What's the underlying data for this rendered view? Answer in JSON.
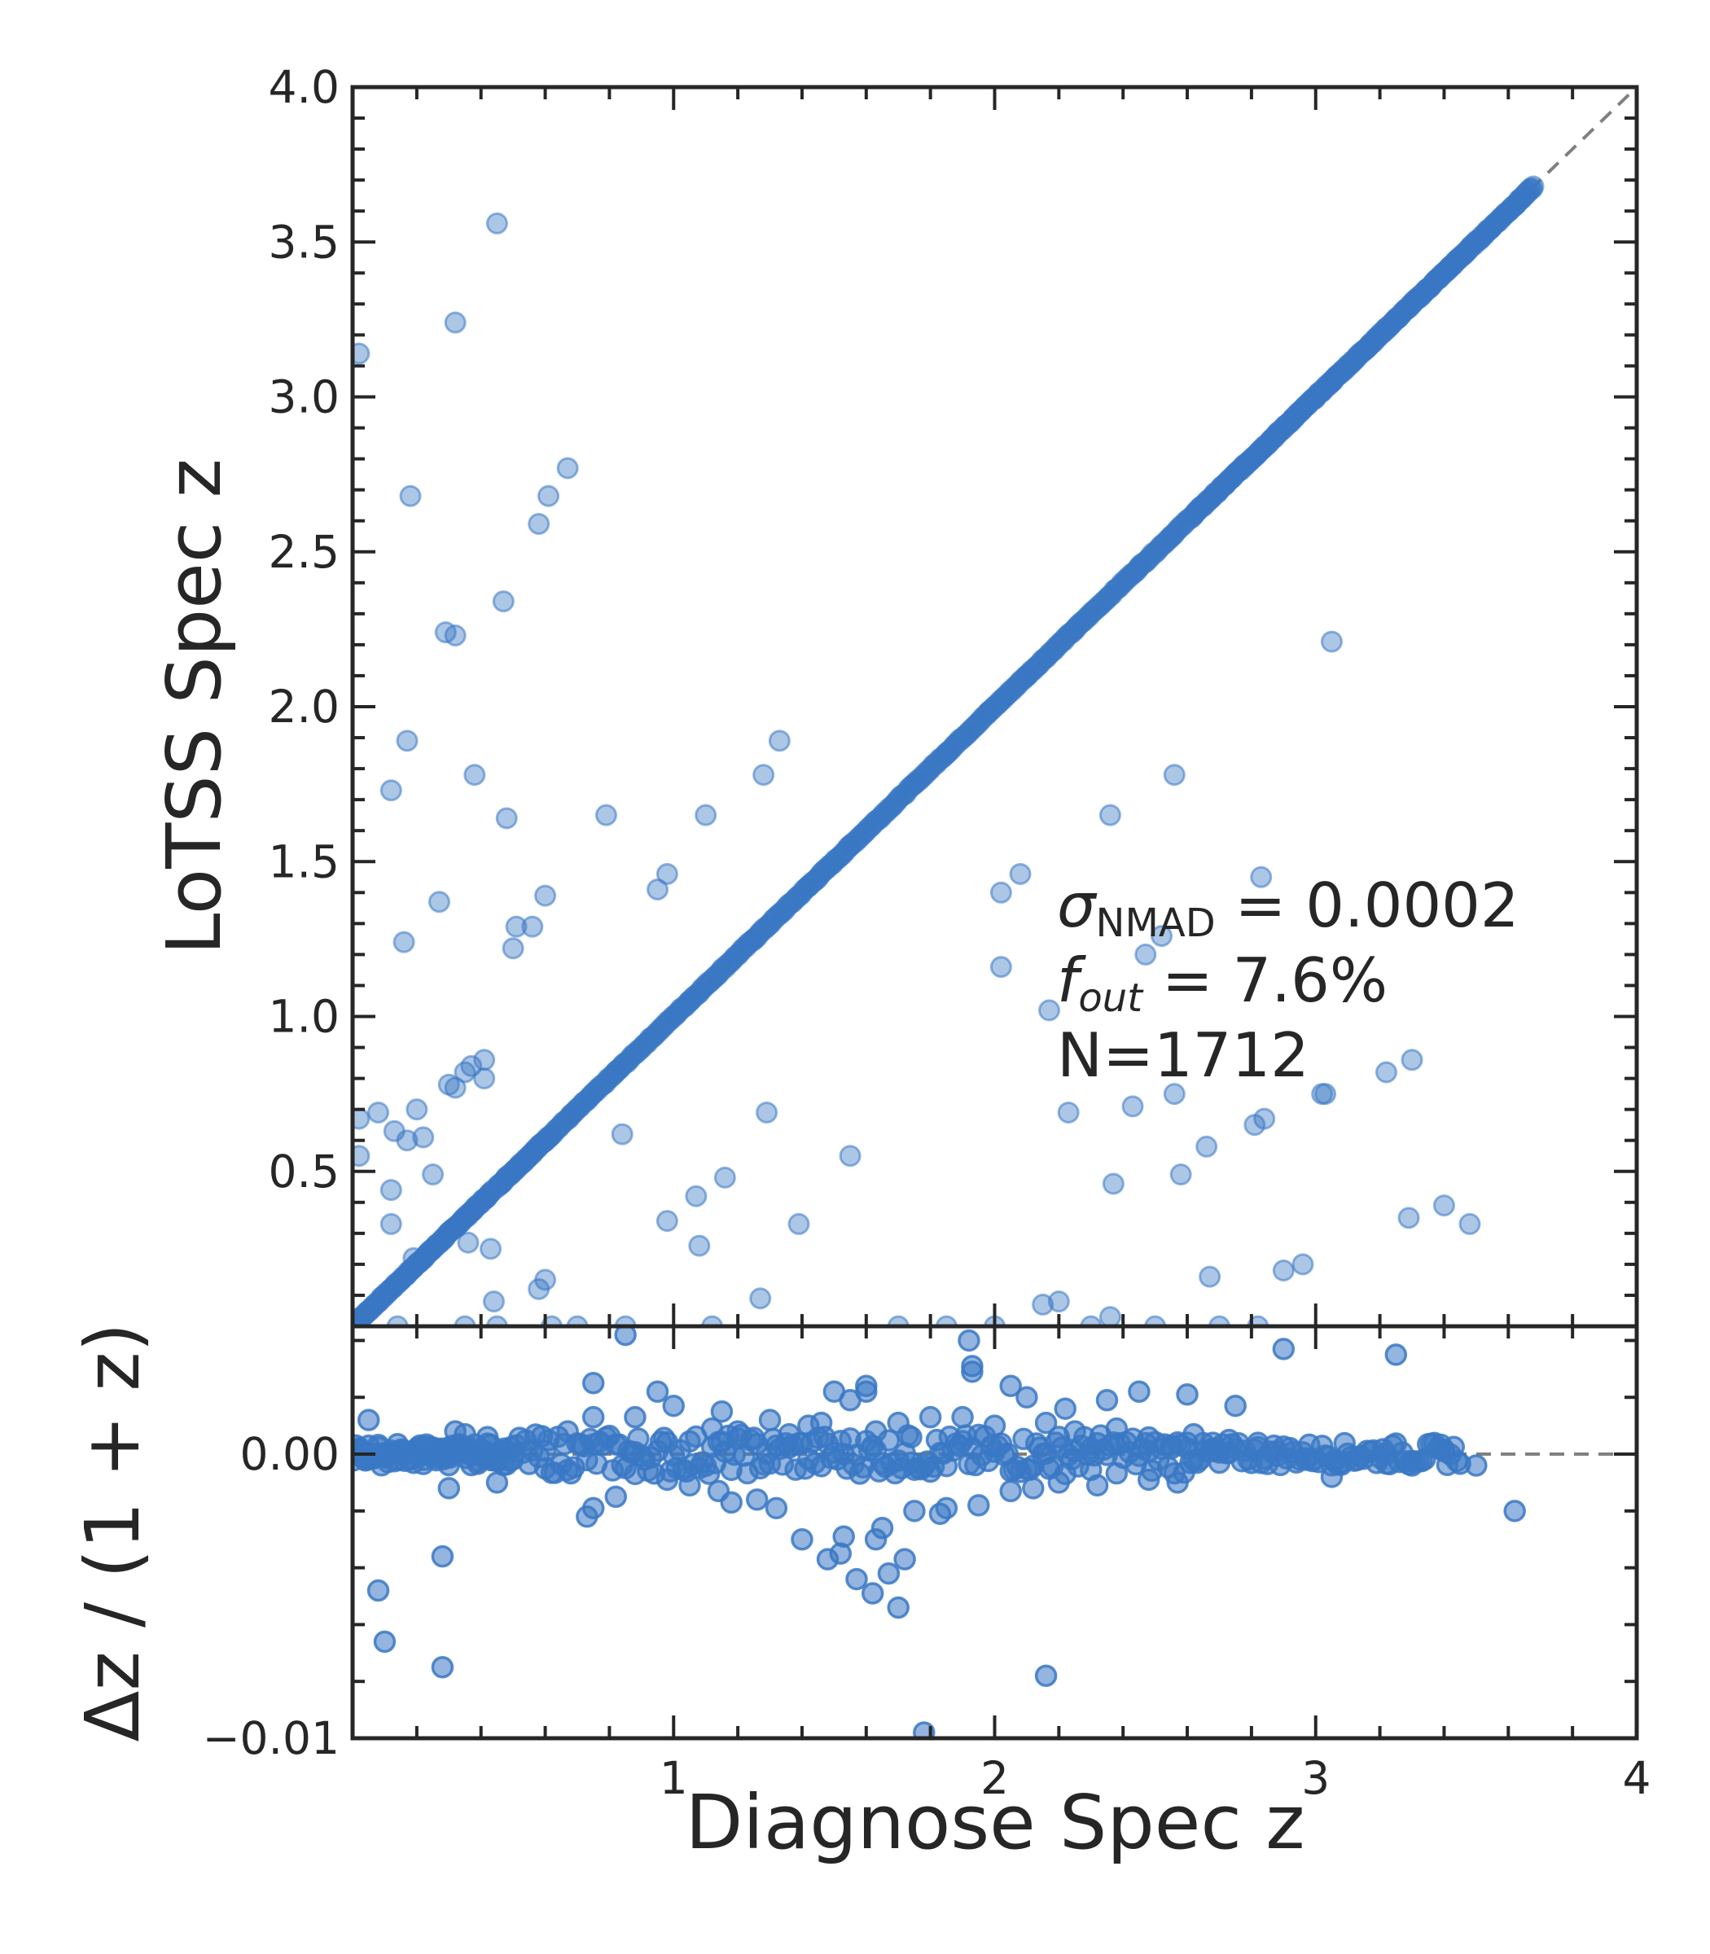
{
  "chart_data": [
    {
      "type": "scatter",
      "panel": "main",
      "ylabel": "LoTSS Spec z",
      "xlim": [
        0,
        4
      ],
      "ylim": [
        0,
        4
      ],
      "yticks": [
        0.5,
        1.0,
        1.5,
        2.0,
        2.5,
        3.0,
        3.5,
        4.0
      ],
      "ytick_labels": [
        "0.5",
        "1.0",
        "1.5",
        "2.0",
        "2.5",
        "3.0",
        "3.5",
        "4.0"
      ],
      "reference_line": "y = x (dashed grey)",
      "marker_color": "#3a78c4",
      "annotations": {
        "sigma_symbol": "σ",
        "sigma_subscript": "NMAD",
        "sigma_value": " = 0.0002",
        "fout_symbol": "f",
        "fout_subscript": "out",
        "fout_value": " = 7.6%",
        "n_text": "N=1712"
      },
      "outliers": [
        [
          0.02,
          3.14
        ],
        [
          0.18,
          2.68
        ],
        [
          0.17,
          1.89
        ],
        [
          0.12,
          1.73
        ],
        [
          0.16,
          1.24
        ],
        [
          0.27,
          1.37
        ],
        [
          0.29,
          2.24
        ],
        [
          0.32,
          2.23
        ],
        [
          0.32,
          3.24
        ],
        [
          0.38,
          1.78
        ],
        [
          0.45,
          3.56
        ],
        [
          0.48,
          1.64
        ],
        [
          0.47,
          2.34
        ],
        [
          0.5,
          1.22
        ],
        [
          0.51,
          1.29
        ],
        [
          0.56,
          1.29
        ],
        [
          0.6,
          1.39
        ],
        [
          0.58,
          2.59
        ],
        [
          0.61,
          2.68
        ],
        [
          0.67,
          2.77
        ],
        [
          0.79,
          1.65
        ],
        [
          0.95,
          1.41
        ],
        [
          0.98,
          1.46
        ],
        [
          1.1,
          1.65
        ],
        [
          1.28,
          1.78
        ],
        [
          1.33,
          1.89
        ],
        [
          2.02,
          1.16
        ],
        [
          2.02,
          1.4
        ],
        [
          2.08,
          1.46
        ],
        [
          2.17,
          1.02
        ],
        [
          2.36,
          1.65
        ],
        [
          2.47,
          1.2
        ],
        [
          2.52,
          1.26
        ],
        [
          2.56,
          1.78
        ],
        [
          2.83,
          1.45
        ],
        [
          3.05,
          2.21
        ],
        [
          2.23,
          0.69
        ],
        [
          2.37,
          0.46
        ],
        [
          2.43,
          0.71
        ],
        [
          2.56,
          0.75
        ],
        [
          2.58,
          0.49
        ],
        [
          2.66,
          0.58
        ],
        [
          2.81,
          0.65
        ],
        [
          2.84,
          0.67
        ],
        [
          3.02,
          0.75
        ],
        [
          3.03,
          0.75
        ],
        [
          3.22,
          0.82
        ],
        [
          3.3,
          0.86
        ],
        [
          3.29,
          0.35
        ],
        [
          3.4,
          0.39
        ],
        [
          3.48,
          0.33
        ],
        [
          2.67,
          0.16
        ],
        [
          2.9,
          0.18
        ],
        [
          2.96,
          0.2
        ],
        [
          2.15,
          0.07
        ],
        [
          2.2,
          0.08
        ],
        [
          2.36,
          0.03
        ],
        [
          1.29,
          0.69
        ],
        [
          1.55,
          0.55
        ],
        [
          1.16,
          0.48
        ],
        [
          1.07,
          0.42
        ],
        [
          0.98,
          0.34
        ],
        [
          1.08,
          0.26
        ],
        [
          1.39,
          0.33
        ],
        [
          0.84,
          0.62
        ],
        [
          1.27,
          0.09
        ],
        [
          0.6,
          0.15
        ],
        [
          0.58,
          0.12
        ],
        [
          0.44,
          0.08
        ],
        [
          0.02,
          0.67
        ],
        [
          0.08,
          0.69
        ],
        [
          0.13,
          0.63
        ],
        [
          0.17,
          0.6
        ],
        [
          0.2,
          0.7
        ],
        [
          0.22,
          0.61
        ],
        [
          0.25,
          0.49
        ],
        [
          0.12,
          0.44
        ],
        [
          0.12,
          0.33
        ],
        [
          0.19,
          0.22
        ],
        [
          0.36,
          0.27
        ],
        [
          0.43,
          0.25
        ],
        [
          0.35,
          0.82
        ],
        [
          0.37,
          0.84
        ],
        [
          0.41,
          0.86
        ],
        [
          0.41,
          0.8
        ],
        [
          0.32,
          0.77
        ],
        [
          0.3,
          0.78
        ],
        [
          0.02,
          0.55
        ],
        [
          0.14,
          0.0
        ],
        [
          0.35,
          0.0
        ],
        [
          0.45,
          0.0
        ],
        [
          0.62,
          0.0
        ],
        [
          0.7,
          0.0
        ],
        [
          0.85,
          0.0
        ],
        [
          1.12,
          0.0
        ],
        [
          1.7,
          0.0
        ],
        [
          1.85,
          0.0
        ],
        [
          2.0,
          0.0
        ],
        [
          2.3,
          0.0
        ],
        [
          2.5,
          0.0
        ],
        [
          2.7,
          0.0
        ],
        [
          2.82,
          0.0
        ]
      ],
      "diagonal": {
        "segments": [
          [
            0.0,
            0.44
          ],
          [
            0.45,
            0.62
          ],
          [
            0.62,
            2.62
          ],
          [
            2.62,
            3.35
          ],
          [
            3.35,
            3.68
          ]
        ],
        "points": [
          0.68,
          0.82,
          1.05,
          1.25,
          1.42,
          1.55,
          1.75,
          1.85,
          1.98,
          2.1,
          2.25,
          2.45,
          2.55,
          2.72,
          2.78,
          2.88,
          2.93,
          3.0,
          3.05,
          3.17,
          3.22,
          3.25,
          3.3,
          3.38,
          3.42,
          3.46,
          3.64
        ]
      }
    },
    {
      "type": "scatter",
      "panel": "residual",
      "xlabel": "Diagnose Spec z",
      "ylabel": "Δz / (1 + z)",
      "xlim": [
        0,
        4
      ],
      "ylim": [
        -0.01,
        0.0045
      ],
      "xticks": [
        1,
        2,
        3,
        4
      ],
      "xtick_labels": [
        "1",
        "2",
        "3",
        "4"
      ],
      "yticks": [
        -0.01,
        0.0
      ],
      "ytick_labels": [
        "−0.01",
        "0.00"
      ],
      "reference_line": "y = 0 (dashed grey)",
      "marker_color": "#3a78c4",
      "points": [
        [
          0.85,
          0.0042
        ],
        [
          1.92,
          0.004
        ],
        [
          2.9,
          0.0037
        ],
        [
          3.25,
          0.0035
        ],
        [
          1.93,
          0.0031
        ],
        [
          1.93,
          0.0029
        ],
        [
          0.75,
          0.0025
        ],
        [
          1.6,
          0.0024
        ],
        [
          0.95,
          0.0022
        ],
        [
          1.6,
          0.0022
        ],
        [
          2.05,
          0.0024
        ],
        [
          2.1,
          0.002
        ],
        [
          1.5,
          0.0022
        ],
        [
          1.55,
          0.0019
        ],
        [
          2.45,
          0.0022
        ],
        [
          2.6,
          0.0021
        ],
        [
          2.35,
          0.0019
        ],
        [
          2.22,
          0.0016
        ],
        [
          1.8,
          0.0013
        ],
        [
          1.9,
          0.0013
        ],
        [
          2.75,
          0.0017
        ],
        [
          1.0,
          0.0017
        ],
        [
          1.15,
          0.0015
        ],
        [
          0.05,
          0.0012
        ],
        [
          0.75,
          0.0013
        ],
        [
          0.88,
          0.0013
        ],
        [
          1.3,
          0.0012
        ],
        [
          1.42,
          0.001
        ],
        [
          1.46,
          0.0011
        ],
        [
          1.7,
          0.0011
        ],
        [
          2.0,
          0.001
        ],
        [
          2.16,
          0.0011
        ],
        [
          2.38,
          0.0009
        ],
        [
          0.32,
          0.0008
        ],
        [
          0.35,
          0.0007
        ],
        [
          0.42,
          0.0006
        ],
        [
          0.67,
          0.0008
        ],
        [
          1.12,
          0.0009
        ],
        [
          1.2,
          0.0008
        ],
        [
          1.36,
          0.0007
        ],
        [
          1.63,
          0.0008
        ],
        [
          1.74,
          0.0006
        ],
        [
          2.25,
          0.0008
        ],
        [
          2.62,
          0.0007
        ],
        [
          2.73,
          0.0005
        ],
        [
          2.82,
          0.0004
        ],
        [
          2.55,
          0.0002
        ],
        [
          2.48,
          0.0001
        ],
        [
          2.6,
          0.0004
        ],
        [
          2.88,
          0.0001
        ],
        [
          2.97,
          -0.0002
        ],
        [
          3.08,
          -0.0003
        ],
        [
          3.22,
          0.0
        ],
        [
          3.3,
          -0.0004
        ],
        [
          3.4,
          0.0001
        ],
        [
          3.5,
          -0.0004
        ],
        [
          3.05,
          -0.0008
        ],
        [
          3.62,
          -0.002
        ],
        [
          2.57,
          -0.001
        ],
        [
          2.48,
          -0.0009
        ],
        [
          2.32,
          -0.0011
        ],
        [
          2.2,
          -0.001
        ],
        [
          2.12,
          -0.0012
        ],
        [
          2.05,
          -0.0013
        ],
        [
          1.95,
          -0.0018
        ],
        [
          1.85,
          -0.0019
        ],
        [
          1.83,
          -0.0021
        ],
        [
          1.75,
          -0.002
        ],
        [
          1.65,
          -0.0026
        ],
        [
          1.63,
          -0.003
        ],
        [
          1.52,
          -0.0035
        ],
        [
          1.48,
          -0.0037
        ],
        [
          1.4,
          -0.003
        ],
        [
          1.32,
          -0.0019
        ],
        [
          1.26,
          -0.0016
        ],
        [
          1.18,
          -0.0017
        ],
        [
          1.14,
          -0.0013
        ],
        [
          1.05,
          -0.0011
        ],
        [
          0.98,
          -0.0009
        ],
        [
          0.82,
          -0.0015
        ],
        [
          0.75,
          -0.0019
        ],
        [
          0.73,
          -0.0022
        ],
        [
          0.45,
          -0.001
        ],
        [
          0.3,
          -0.0012
        ],
        [
          0.28,
          -0.0036
        ],
        [
          0.08,
          -0.0048
        ],
        [
          0.28,
          -0.0075
        ],
        [
          0.1,
          -0.0066
        ],
        [
          1.78,
          -0.0098
        ],
        [
          1.7,
          -0.0054
        ],
        [
          1.67,
          -0.0042
        ],
        [
          1.53,
          -0.0029
        ],
        [
          1.57,
          -0.0044
        ],
        [
          1.62,
          -0.0049
        ],
        [
          1.72,
          -0.0037
        ],
        [
          2.16,
          -0.0078
        ],
        [
          2.7,
          -0.0003
        ],
        [
          2.68,
          0.0004
        ],
        [
          2.3,
          0.0002
        ],
        [
          0.6,
          -0.0005
        ],
        [
          0.88,
          -0.0007
        ]
      ],
      "band": {
        "x": [
          0.0,
          3.45
        ],
        "note": "dense strip of points near zero residual"
      }
    }
  ]
}
